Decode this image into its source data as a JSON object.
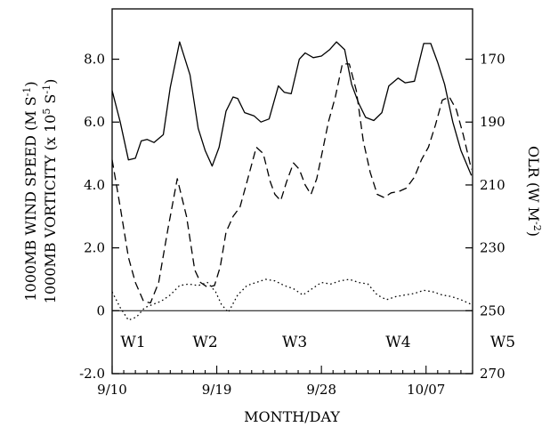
{
  "chart_data": {
    "type": "line",
    "xlabel": "MONTH/DAY",
    "ylabel_left_1": "1000MB WIND SPEED (M S",
    "ylabel_left_1_sup": "-1",
    "ylabel_left_2": "1000MB VORTICITY (x 10",
    "ylabel_left_2_sup1": "5",
    "ylabel_left_2_mid": " S",
    "ylabel_left_2_sup2": "-1",
    "ylabel_right": "OLR (W M",
    "ylabel_right_sup": "-2",
    "x_ticks": [
      {
        "day": 0,
        "label": "9/10"
      },
      {
        "day": 9,
        "label": "9/19"
      },
      {
        "day": 18,
        "label": "9/28"
      },
      {
        "day": 27,
        "label": "10/07"
      }
    ],
    "xlim": [
      0,
      31
    ],
    "ylim_left": [
      -2.0,
      9.6
    ],
    "ylim_right": [
      270,
      154
    ],
    "left_ticks": [
      {
        "v": -2.0,
        "label": "-2.0"
      },
      {
        "v": 0,
        "label": "0"
      },
      {
        "v": 2.0,
        "label": "2.0"
      },
      {
        "v": 4.0,
        "label": "4.0"
      },
      {
        "v": 6.0,
        "label": "6.0"
      },
      {
        "v": 8.0,
        "label": "8.0"
      }
    ],
    "right_ticks": [
      {
        "v": 170,
        "label": "170"
      },
      {
        "v": 190,
        "label": "190"
      },
      {
        "v": 210,
        "label": "210"
      },
      {
        "v": 230,
        "label": "230"
      },
      {
        "v": 250,
        "label": "250"
      },
      {
        "v": 270,
        "label": "270"
      }
    ],
    "zero_line": 0,
    "wave_labels": [
      {
        "label": "W1",
        "day": 1.8
      },
      {
        "label": "W2",
        "day": 8.0
      },
      {
        "label": "W3",
        "day": 15.7
      },
      {
        "label": "W4",
        "day": 24.6
      },
      {
        "label": "W5",
        "day": 33.6
      }
    ],
    "series": [
      {
        "style": "solid",
        "x": [
          0,
          0.7,
          1.4,
          2,
          2.5,
          3,
          3.6,
          4.4,
          5,
          5.8,
          6.7,
          7.4,
          8,
          8.6,
          9.2,
          9.8,
          10.4,
          10.8,
          11.4,
          12.2,
          12.8,
          13.5,
          14.3,
          14.8,
          15.4,
          16.1,
          16.6,
          17.3,
          18,
          18.7,
          19.3,
          20,
          20.6,
          21.2,
          21.8,
          22.5,
          23.2,
          23.8,
          24.6,
          25.2,
          26,
          26.8,
          27.4,
          28,
          28.6,
          29.3,
          30,
          30.9
        ],
        "values": [
          7.0,
          6.0,
          4.8,
          4.85,
          5.4,
          5.45,
          5.35,
          5.6,
          7.1,
          8.55,
          7.5,
          5.8,
          5.1,
          4.6,
          5.2,
          6.35,
          6.8,
          6.75,
          6.3,
          6.2,
          6.0,
          6.1,
          7.15,
          6.95,
          6.9,
          8.0,
          8.2,
          8.05,
          8.1,
          8.3,
          8.55,
          8.3,
          7.2,
          6.6,
          6.15,
          6.05,
          6.3,
          7.15,
          7.4,
          7.25,
          7.3,
          8.5,
          8.5,
          7.9,
          7.2,
          6.0,
          5.1,
          4.3
        ]
      },
      {
        "style": "dashed",
        "x": [
          0,
          0.7,
          1.4,
          2,
          2.7,
          3.3,
          4,
          4.8,
          5.6,
          6.4,
          7.1,
          7.6,
          8.2,
          8.8,
          9.3,
          9.8,
          10.4,
          11,
          11.6,
          12.4,
          13,
          13.6,
          14,
          14.5,
          15,
          15.6,
          16.1,
          16.6,
          17.1,
          17.6,
          18.1,
          18.6,
          19.2,
          19.8,
          20.4,
          21,
          21.6,
          22.2,
          22.8,
          23.4,
          24,
          24.7,
          25.3,
          26,
          26.6,
          27.2,
          27.8,
          28.4,
          29,
          29.6,
          30.2,
          30.9
        ],
        "values": [
          4.8,
          3.3,
          1.7,
          0.9,
          0.3,
          0.25,
          0.9,
          2.6,
          4.2,
          3.0,
          1.3,
          0.9,
          0.75,
          0.8,
          1.4,
          2.5,
          3.0,
          3.3,
          4.1,
          5.2,
          5.0,
          4.1,
          3.7,
          3.5,
          4.1,
          4.7,
          4.5,
          4.0,
          3.7,
          4.2,
          5.1,
          6.0,
          6.8,
          7.85,
          7.85,
          7.0,
          5.4,
          4.4,
          3.7,
          3.6,
          3.75,
          3.8,
          3.9,
          4.25,
          4.8,
          5.2,
          5.9,
          6.7,
          6.8,
          6.4,
          5.6,
          4.5
        ]
      },
      {
        "style": "dotted",
        "x": [
          0,
          0.7,
          1.4,
          2.1,
          2.8,
          3.5,
          4.2,
          5,
          5.8,
          6.6,
          7.4,
          8.2,
          8.9,
          9.4,
          10,
          10.8,
          11.6,
          12.4,
          13.2,
          14,
          14.8,
          15.6,
          16.4,
          17.2,
          18,
          18.8,
          19.6,
          20.4,
          21.2,
          22,
          22.8,
          23.6,
          24.4,
          25.2,
          26,
          26.8,
          27.6,
          28.4,
          29.2,
          30,
          30.9
        ],
        "values": [
          0.6,
          0.1,
          -0.3,
          -0.2,
          0.1,
          0.2,
          0.3,
          0.5,
          0.8,
          0.85,
          0.8,
          0.9,
          0.6,
          0.2,
          -0.05,
          0.5,
          0.8,
          0.9,
          1.0,
          0.95,
          0.8,
          0.7,
          0.5,
          0.7,
          0.9,
          0.85,
          0.95,
          1.0,
          0.9,
          0.85,
          0.5,
          0.35,
          0.45,
          0.5,
          0.55,
          0.65,
          0.6,
          0.5,
          0.45,
          0.35,
          0.2
        ]
      }
    ]
  }
}
